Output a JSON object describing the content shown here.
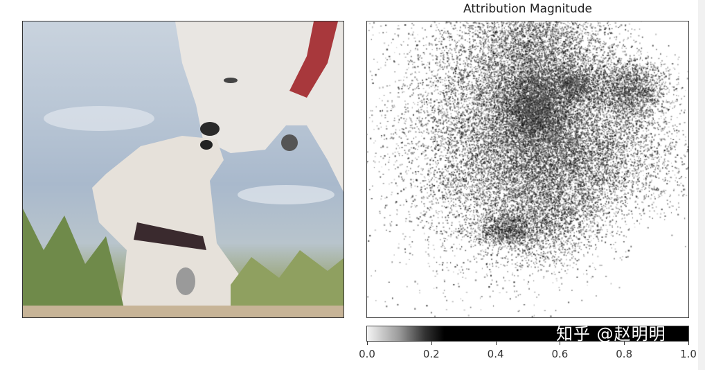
{
  "chart_data": {
    "type": "heatmap",
    "title": "Attribution Magnitude",
    "colormap": "gray_r",
    "colorbar": {
      "range": [
        0.0,
        1.0
      ],
      "ticks": [
        "0.0",
        "0.2",
        "0.4",
        "0.6",
        "0.8",
        "1.0"
      ]
    }
  },
  "watermark": "知乎 @赵明明",
  "colors": {
    "sky": "#b9c6d5",
    "dog": "#e8e4df",
    "grass": "#6f8a4a",
    "collar": "#b03a3a"
  }
}
